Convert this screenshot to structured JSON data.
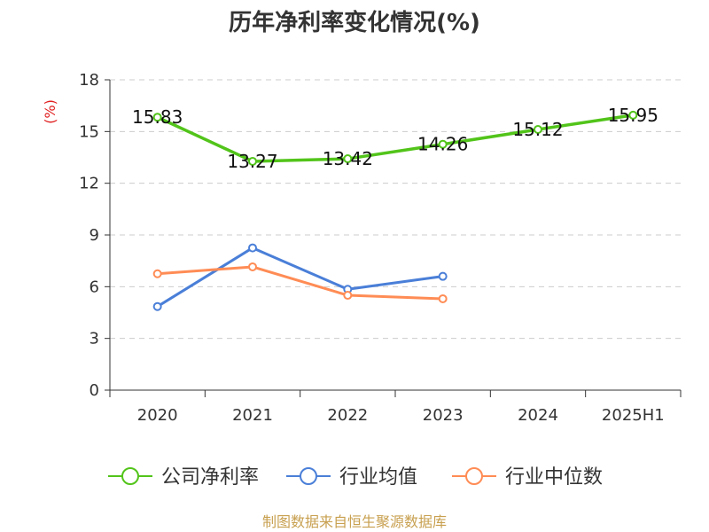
{
  "chart_data": {
    "type": "line",
    "title": "历年净利率变化情况(%)",
    "unit_label": "(%)",
    "categories": [
      "2020",
      "2021",
      "2022",
      "2023",
      "2024",
      "2025H1"
    ],
    "y_ticks": [
      "0",
      "3",
      "6",
      "9",
      "12",
      "15",
      "18"
    ],
    "ylim": [
      0,
      18
    ],
    "grid": true,
    "legend_position": "bottom",
    "series": [
      {
        "name": "公司净利率",
        "color": "#52c41a",
        "values": [
          15.83,
          13.27,
          13.42,
          14.26,
          15.12,
          15.95
        ],
        "labels": [
          "15.83",
          "13.27",
          "13.42",
          "14.26",
          "15.12",
          "15.95"
        ]
      },
      {
        "name": "行业均值",
        "color": "#4a7fd8",
        "values": [
          4.85,
          8.25,
          5.85,
          6.6,
          null,
          null
        ]
      },
      {
        "name": "行业中位数",
        "color": "#ff8c55",
        "values": [
          6.75,
          7.15,
          5.5,
          5.3,
          null,
          null
        ]
      }
    ]
  },
  "footer": {
    "source": "制图数据来自恒生聚源数据库"
  },
  "colors": {
    "unit_label": "#e02020",
    "footer": "#c8a050",
    "axis": "#333333",
    "grid": "#cccccc"
  }
}
